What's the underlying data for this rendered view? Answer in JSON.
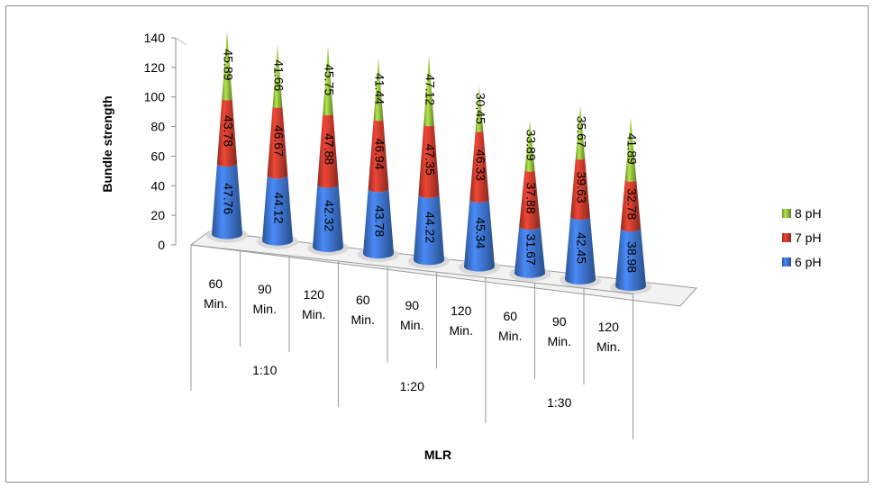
{
  "chart_data": {
    "type": "bar",
    "style": "3d-stacked-cone",
    "xlabel": "MLR",
    "ylabel": "Bundle strength",
    "ylim": [
      0,
      140
    ],
    "yticks": [
      "0",
      "20",
      "40",
      "60",
      "80",
      "100",
      "120",
      "140"
    ],
    "categories": [
      "60 Min.",
      "90 Min.",
      "120 Min.",
      "60 Min.",
      "90 Min.",
      "120 Min.",
      "60 Min.",
      "90 Min.",
      "120 Min."
    ],
    "groups": [
      {
        "label": "1:10",
        "span": 3
      },
      {
        "label": "1:20",
        "span": 3
      },
      {
        "label": "1:30",
        "span": 3
      }
    ],
    "legend_position": "right",
    "grid": false,
    "series": [
      {
        "name": "6 pH",
        "color": "#3b6fc6",
        "values": [
          47.76,
          44.12,
          42.32,
          43.78,
          44.22,
          45.34,
          31.67,
          42.45,
          38.98
        ]
      },
      {
        "name": "7 pH",
        "color": "#c0392b",
        "values": [
          43.78,
          46.67,
          47.88,
          46.94,
          47.35,
          46.33,
          37.88,
          39.63,
          32.78
        ]
      },
      {
        "name": "8 pH",
        "color": "#8fb83c",
        "values": [
          45.89,
          41.66,
          45.75,
          41.44,
          47.12,
          30.45,
          33.89,
          35.67,
          41.89
        ]
      }
    ]
  }
}
